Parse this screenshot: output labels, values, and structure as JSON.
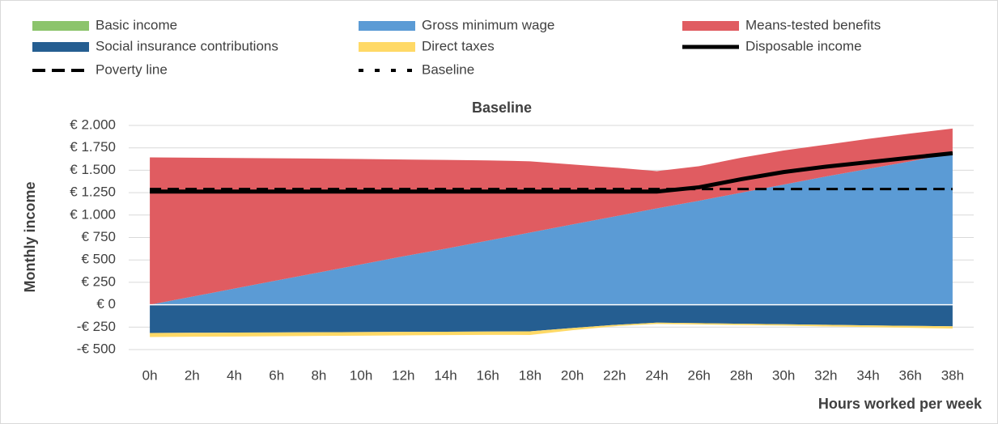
{
  "chart_data": {
    "type": "stacked-area",
    "title": "Baseline",
    "y_label": "Monthly income",
    "x_label": "Hours worked per week",
    "categories": [
      "0h",
      "2h",
      "4h",
      "6h",
      "8h",
      "10h",
      "12h",
      "14h",
      "16h",
      "18h",
      "20h",
      "22h",
      "24h",
      "26h",
      "28h",
      "30h",
      "32h",
      "34h",
      "36h",
      "38h"
    ],
    "series": [
      {
        "name": "Basic income",
        "color": "#8cc46c",
        "kind": "area",
        "values": [
          0,
          0,
          0,
          0,
          0,
          0,
          0,
          0,
          0,
          0,
          0,
          0,
          0,
          0,
          0,
          0,
          0,
          0,
          0,
          0
        ]
      },
      {
        "name": "Gross minimum wage",
        "color": "#5b9bd5",
        "kind": "area",
        "values": [
          0,
          90,
          180,
          270,
          360,
          450,
          540,
          625,
          715,
          805,
          895,
          985,
          1075,
          1160,
          1250,
          1340,
          1430,
          1515,
          1600,
          1690
        ]
      },
      {
        "name": "Means-tested benefits",
        "color": "#e05c61",
        "kind": "area",
        "values": [
          1643,
          1550,
          1457,
          1363,
          1270,
          1175,
          1080,
          990,
          895,
          795,
          670,
          545,
          415,
          385,
          390,
          380,
          355,
          335,
          310,
          275
        ]
      },
      {
        "name": "Social insurance contributions",
        "color": "#255e91",
        "kind": "area",
        "values": [
          -315,
          -313,
          -311,
          -309,
          -307,
          -305,
          -303,
          -301,
          -299,
          -297,
          -260,
          -225,
          -200,
          -205,
          -212,
          -218,
          -224,
          -230,
          -236,
          -240
        ]
      },
      {
        "name": "Direct taxes",
        "color": "#ffd966",
        "kind": "area",
        "values": [
          -45,
          -44,
          -43,
          -42,
          -41,
          -40,
          -39,
          -38,
          -37,
          -40,
          -25,
          -15,
          -15,
          -15,
          -15,
          -15,
          -18,
          -20,
          -22,
          -25
        ]
      },
      {
        "name": "Disposable income",
        "color": "#000000",
        "kind": "line",
        "dash": "solid",
        "values": [
          1262,
          1262,
          1262,
          1262,
          1262,
          1262,
          1262,
          1262,
          1262,
          1262,
          1262,
          1262,
          1262,
          1310,
          1400,
          1480,
          1540,
          1590,
          1640,
          1690
        ]
      },
      {
        "name": "Poverty line",
        "color": "#000000",
        "kind": "line",
        "dash": "dashed",
        "values": [
          1290,
          1290,
          1290,
          1290,
          1290,
          1290,
          1290,
          1290,
          1290,
          1290,
          1290,
          1290,
          1290,
          1290,
          1290,
          1290,
          1290,
          1290,
          1290,
          1290
        ]
      },
      {
        "name": "Baseline",
        "color": "#000000",
        "kind": "line",
        "dash": "dotted",
        "values": [
          1262,
          1262,
          1262,
          1262,
          1262,
          1262,
          1262,
          1262,
          1262,
          1262,
          1262,
          1262,
          1262,
          1310,
          1400,
          1480,
          1540,
          1590,
          1640,
          1690
        ]
      }
    ],
    "ylim": [
      -500,
      2000
    ],
    "yticks": [
      {
        "value": -500,
        "label": "-€ 500"
      },
      {
        "value": -250,
        "label": "-€ 250"
      },
      {
        "value": 0,
        "label": "€ 0"
      },
      {
        "value": 250,
        "label": "€ 250"
      },
      {
        "value": 500,
        "label": "€ 500"
      },
      {
        "value": 750,
        "label": "€ 750"
      },
      {
        "value": 1000,
        "label": "€ 1.000"
      },
      {
        "value": 1250,
        "label": "€ 1.250"
      },
      {
        "value": 1500,
        "label": "€ 1.500"
      },
      {
        "value": 1750,
        "label": "€ 1.750"
      },
      {
        "value": 2000,
        "label": "€ 2.000"
      }
    ],
    "grid": true,
    "legend": "top"
  }
}
